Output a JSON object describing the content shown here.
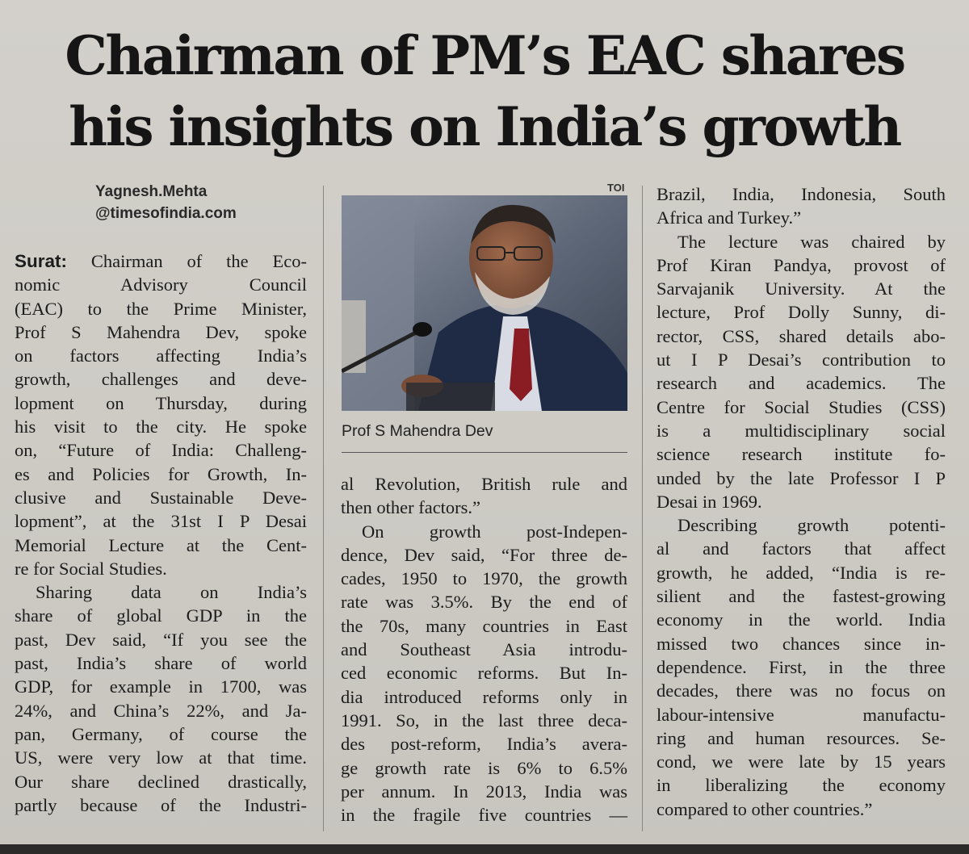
{
  "headline": {
    "line1": "Chairman of PM’s EAC shares",
    "line2": "his insights on India’s growth"
  },
  "byline": {
    "author": "Yagnesh.Mehta",
    "outlet": "@timesofindia.com"
  },
  "photo": {
    "credit": "TOI",
    "caption": "Prof S Mahendra Dev"
  },
  "article": {
    "dateline": "Surat:",
    "col1": [
      "Chairman of the Eco-",
      "nomic Advisory Council",
      "(EAC) to the Prime Minister,",
      "Prof S Mahendra Dev, spoke",
      "on factors affecting India’s",
      "growth, challenges and deve-",
      "lopment on Thursday, during",
      "his visit to the city. He spoke",
      "on, “Future of India: Challeng-",
      "es and Policies for Growth, In-",
      "clusive and Sustainable Deve-",
      "lopment”, at the 31st I P Desai",
      "Memorial Lecture at the Cent-",
      "re for Social Studies.",
      "Sharing data on India’s",
      "share of global GDP in the",
      "past, Dev said, “If you see the",
      "past, India’s share of world",
      "GDP, for example in 1700, was",
      "24%, and China’s 22%, and Ja-",
      "pan, Germany, of course the",
      "US, were very low at that time.",
      "Our share declined drastically,",
      "partly because of the Industri-"
    ],
    "col2": [
      "al Revolution, British rule and",
      "then other factors.”",
      "On growth post-Indepen-",
      "dence, Dev said, “For three de-",
      "cades, 1950 to 1970, the growth",
      "rate was 3.5%. By the end of",
      "the 70s, many countries in East",
      "and Southeast Asia introdu-",
      "ced economic reforms. But In-",
      "dia introduced reforms only in",
      "1991. So, in the last three deca-",
      "des post-reform, India’s avera-",
      "ge growth rate is 6% to 6.5%",
      "per annum. In 2013, India was",
      "in the fragile five countries —"
    ],
    "col3": [
      "Brazil, India, Indonesia, South",
      "Africa and Turkey.”",
      "The lecture was chaired by",
      "Prof Kiran Pandya, provost of",
      "Sarvajanik University. At the",
      "lecture, Prof Dolly Sunny, di-",
      "rector, CSS, shared details abo-",
      "ut I P Desai’s contribution to",
      "research and academics. The",
      "Centre for Social Studies (CSS)",
      "is a multidisciplinary social",
      "science research institute fo-",
      "unded by the late Professor I P",
      "Desai in 1969.",
      "Describing growth potenti-",
      "al and factors that affect",
      "growth, he added, “India is re-",
      "silient and the fastest-growing",
      "economy in the world. India",
      "missed two chances since in-",
      "dependence. First, in the three",
      "decades, there was no focus on",
      "labour-intensive manufactu-",
      "ring and human resources. Se-",
      "cond, we were late by 15 years",
      "in liberalizing the economy",
      "compared to other countries.”"
    ]
  },
  "colors": {
    "paper": "#cfccc6",
    "ink": "#1c1c1c"
  }
}
